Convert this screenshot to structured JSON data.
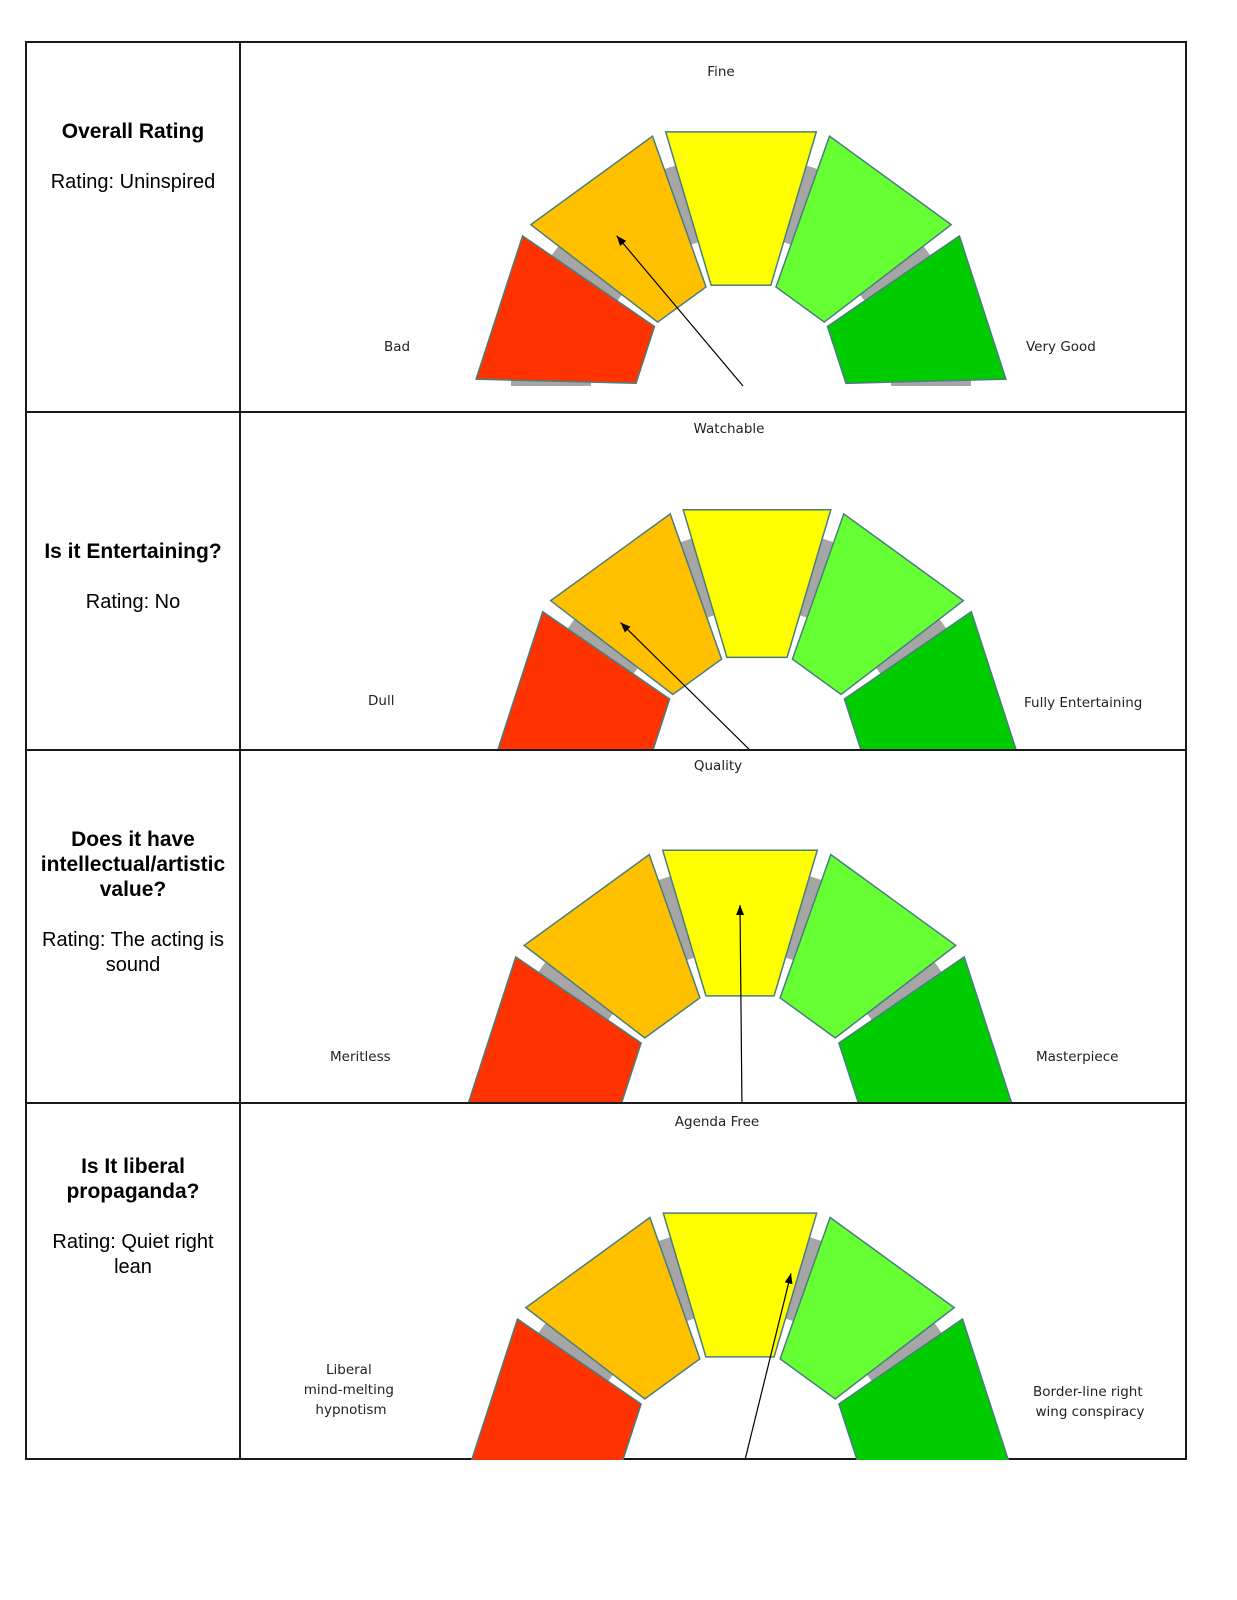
{
  "colors": {
    "seg1": "#ff3300",
    "seg2": "#ffc000",
    "seg3": "#ffff00",
    "seg4": "#66ff33",
    "seg5": "#00cc00",
    "track": "#a6a6a6",
    "segment_stroke": "#4a7d7d",
    "arrow": "#000000"
  },
  "rows": [
    {
      "title": "Overall Rating",
      "rating": "Rating: Uninspired",
      "gauge": {
        "left_label": "Bad",
        "top_label": "Fine",
        "right_label": "Very Good",
        "segment_count": 5,
        "pointer_value": 0.28
      }
    },
    {
      "title": "Is it Entertaining?",
      "rating": "Rating: No",
      "gauge": {
        "left_label": "Dull",
        "top_label": "Watchable",
        "right_label": "Fully Entertaining",
        "segment_count": 5,
        "pointer_value": 0.25
      }
    },
    {
      "title": "Does it have intellectual/artistic value?",
      "rating": "Rating:  The acting is sound",
      "gauge": {
        "left_label": "Meritless",
        "top_label": "Quality",
        "right_label": "Masterpiece",
        "segment_count": 5,
        "pointer_value": 0.5
      }
    },
    {
      "title": "Is It liberal propaganda?",
      "rating": "Rating: Quiet right lean",
      "gauge": {
        "left_label_lines": [
          "Liberal",
          "mind-melting",
          "hypnotism"
        ],
        "top_label": "Agenda Free",
        "right_label_lines": [
          "Border-line right",
          "wing conspiracy"
        ],
        "segment_count": 5,
        "pointer_value": 0.58
      }
    }
  ]
}
